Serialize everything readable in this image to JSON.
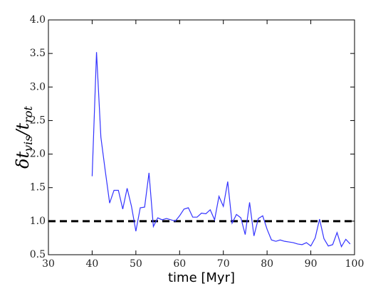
{
  "chart_data": {
    "type": "line",
    "xlabel": "time [Myr]",
    "ylabel_parts": [
      "δt",
      "vis",
      "/t",
      "rot"
    ],
    "x": [
      40,
      41,
      42,
      43,
      44,
      45,
      46,
      47,
      48,
      49,
      50,
      51,
      52,
      53,
      54,
      55,
      56,
      57,
      58,
      59,
      60,
      61,
      62,
      63,
      64,
      65,
      66,
      67,
      68,
      69,
      70,
      71,
      72,
      73,
      74,
      75,
      76,
      77,
      78,
      79,
      80,
      81,
      82,
      83,
      84,
      85,
      86,
      87,
      88,
      89,
      90,
      91,
      92,
      93,
      94,
      95,
      96,
      97,
      98,
      99
    ],
    "series": [
      {
        "color": "#3333ff",
        "values": [
          1.67,
          3.52,
          2.25,
          1.75,
          1.27,
          1.46,
          1.46,
          1.18,
          1.49,
          1.22,
          0.85,
          1.2,
          1.21,
          1.72,
          0.92,
          1.05,
          1.02,
          1.04,
          1.02,
          1.0,
          1.08,
          1.18,
          1.2,
          1.06,
          1.06,
          1.12,
          1.11,
          1.17,
          1.02,
          1.37,
          1.22,
          1.59,
          0.97,
          1.1,
          1.05,
          0.8,
          1.28,
          0.78,
          1.04,
          1.08,
          0.88,
          0.72,
          0.7,
          0.72,
          0.7,
          0.69,
          0.68,
          0.66,
          0.65,
          0.68,
          0.63,
          0.75,
          1.03,
          0.74,
          0.63,
          0.65,
          0.83,
          0.62,
          0.73,
          0.66
        ]
      }
    ],
    "reference_line": {
      "value": 1.0,
      "color": "#000000"
    },
    "xlim": [
      30,
      100
    ],
    "xticks": [
      30,
      40,
      50,
      60,
      70,
      80,
      90,
      100
    ],
    "ylim": [
      0.5,
      4.0
    ],
    "yticks": [
      0.5,
      {
        "value": 1.0,
        "label": "1.0"
      },
      1.5,
      {
        "value": 2.0,
        "label": "2.0"
      },
      2.5,
      {
        "value": 3.0,
        "label": "3.0"
      },
      3.5,
      {
        "value": 4.0,
        "label": "4.0"
      }
    ]
  }
}
